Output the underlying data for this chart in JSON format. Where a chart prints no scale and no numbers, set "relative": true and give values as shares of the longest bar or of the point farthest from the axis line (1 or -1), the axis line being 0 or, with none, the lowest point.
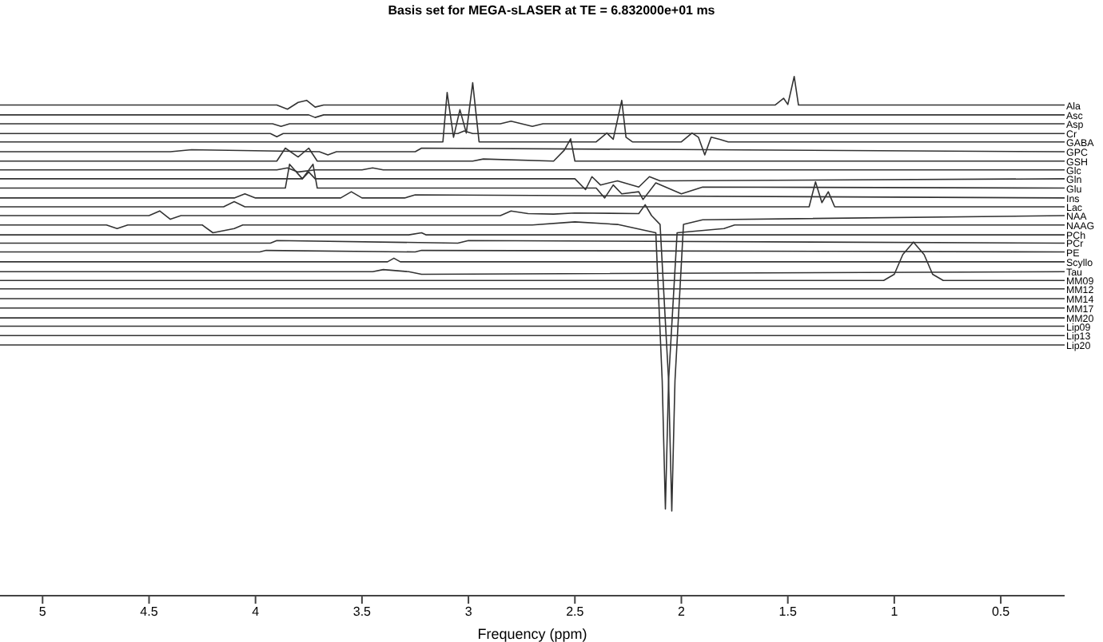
{
  "chart_data": {
    "type": "line",
    "title": "Basis set for MEGA-sLASER at TE = 6.832000e+01 ms",
    "xlabel": "Frequency (ppm)",
    "relative": true,
    "xlim": [
      5.2,
      0.2
    ],
    "xticks": [
      5,
      4.5,
      4,
      3.5,
      3,
      2.5,
      2,
      1.5,
      1,
      0.5
    ],
    "grid": false,
    "legend": false,
    "marker": "none",
    "line_style": "solid",
    "tick_labels": "x",
    "series": [
      {
        "name": "Ala",
        "color": "#333333",
        "x": [
          5.2,
          3.9,
          3.85,
          3.8,
          3.76,
          3.72,
          3.68,
          1.56,
          1.52,
          1.5,
          1.47,
          1.45,
          0.2
        ],
        "values": [
          0.945,
          0.945,
          0.937,
          0.95,
          0.954,
          0.941,
          0.945,
          0.945,
          0.958,
          0.946,
          1.0,
          0.945,
          0.945
        ]
      },
      {
        "name": "Asc",
        "color": "#333333",
        "x": [
          5.2,
          3.75,
          3.72,
          3.68,
          0.2
        ],
        "values": [
          0.926,
          0.926,
          0.921,
          0.926,
          0.926
        ]
      },
      {
        "name": "Asp",
        "color": "#333333",
        "x": [
          5.2,
          3.92,
          3.88,
          3.84,
          2.85,
          2.8,
          2.7,
          2.65,
          0.2
        ],
        "values": [
          0.909,
          0.909,
          0.904,
          0.909,
          0.909,
          0.914,
          0.904,
          0.909,
          0.909
        ]
      },
      {
        "name": "Cr",
        "color": "#333333",
        "x": [
          5.2,
          3.93,
          3.9,
          3.87,
          3.05,
          3.02,
          2.98,
          0.2
        ],
        "values": [
          0.89,
          0.89,
          0.884,
          0.89,
          0.89,
          0.895,
          0.89,
          0.89
        ]
      },
      {
        "name": "GABA",
        "color": "#333333",
        "x": [
          5.2,
          3.2,
          3.12,
          3.1,
          3.07,
          3.04,
          3.01,
          2.98,
          2.95,
          2.4,
          2.35,
          2.32,
          2.28,
          2.26,
          2.23,
          2.0,
          1.95,
          1.92,
          1.89,
          1.86,
          1.82,
          1.78,
          0.2
        ],
        "values": [
          0.874,
          0.874,
          0.874,
          0.969,
          0.883,
          0.936,
          0.891,
          0.988,
          0.874,
          0.874,
          0.891,
          0.879,
          0.954,
          0.883,
          0.874,
          0.874,
          0.891,
          0.883,
          0.849,
          0.883,
          0.879,
          0.874,
          0.874
        ]
      },
      {
        "name": "GPC",
        "color": "#333333",
        "x": [
          5.2,
          4.4,
          4.3,
          3.7,
          3.66,
          3.62,
          3.25,
          3.22,
          0.2
        ],
        "values": [
          0.855,
          0.855,
          0.859,
          0.855,
          0.849,
          0.855,
          0.855,
          0.862,
          0.855
        ]
      },
      {
        "name": "GSH",
        "color": "#333333",
        "x": [
          5.2,
          3.9,
          3.86,
          3.8,
          3.75,
          3.71,
          2.98,
          2.93,
          2.6,
          2.55,
          2.52,
          2.5,
          0.2
        ],
        "values": [
          0.837,
          0.837,
          0.862,
          0.845,
          0.862,
          0.837,
          0.837,
          0.841,
          0.837,
          0.858,
          0.88,
          0.837,
          0.837
        ]
      },
      {
        "name": "Glc",
        "color": "#333333",
        "x": [
          5.2,
          3.9,
          3.85,
          3.8,
          3.72,
          3.5,
          3.45,
          3.4,
          0.2
        ],
        "values": [
          0.82,
          0.82,
          0.824,
          0.816,
          0.82,
          0.82,
          0.824,
          0.82,
          0.82
        ]
      },
      {
        "name": "Gln",
        "color": "#333333",
        "x": [
          5.2,
          3.78,
          3.75,
          3.72,
          2.5,
          2.45,
          2.42,
          2.38,
          2.3,
          2.2,
          2.15,
          2.1,
          0.2
        ],
        "values": [
          0.803,
          0.803,
          0.816,
          0.803,
          0.803,
          0.782,
          0.807,
          0.791,
          0.799,
          0.787,
          0.807,
          0.799,
          0.803
        ]
      },
      {
        "name": "Glu",
        "color": "#333333",
        "x": [
          5.2,
          3.86,
          3.84,
          3.78,
          3.73,
          3.71,
          2.4,
          2.36,
          2.32,
          2.28,
          2.2,
          2.18,
          2.12,
          2.0,
          1.9,
          0.2
        ],
        "values": [
          0.785,
          0.785,
          0.831,
          0.803,
          0.831,
          0.785,
          0.785,
          0.766,
          0.791,
          0.774,
          0.778,
          0.763,
          0.795,
          0.774,
          0.787,
          0.785
        ]
      },
      {
        "name": "Ins",
        "color": "#333333",
        "x": [
          5.2,
          4.1,
          4.05,
          4.0,
          3.6,
          3.55,
          3.5,
          3.3,
          3.25,
          0.2
        ],
        "values": [
          0.766,
          0.766,
          0.774,
          0.766,
          0.766,
          0.778,
          0.766,
          0.766,
          0.772,
          0.766
        ]
      },
      {
        "name": "Lac",
        "color": "#333333",
        "x": [
          5.2,
          4.15,
          4.1,
          4.05,
          1.4,
          1.37,
          1.34,
          1.31,
          1.28,
          0.2
        ],
        "values": [
          0.749,
          0.749,
          0.759,
          0.749,
          0.749,
          0.797,
          0.757,
          0.778,
          0.749,
          0.749
        ]
      },
      {
        "name": "NAA",
        "color": "#333333",
        "x": [
          5.2,
          4.5,
          4.45,
          4.4,
          4.35,
          2.85,
          2.8,
          2.72,
          2.6,
          2.5,
          2.2,
          2.17,
          2.14,
          2.1,
          2.06,
          2.045,
          2.03,
          1.99,
          1.9,
          0.2
        ],
        "values": [
          0.732,
          0.732,
          0.741,
          0.725,
          0.732,
          0.732,
          0.741,
          0.736,
          0.735,
          0.737,
          0.736,
          0.753,
          0.732,
          0.715,
          0.414,
          0.163,
          0.414,
          0.715,
          0.724,
          0.732
        ]
      },
      {
        "name": "NAAG",
        "color": "#333333",
        "x": [
          5.2,
          4.7,
          4.65,
          4.6,
          4.25,
          4.2,
          4.1,
          4.06,
          2.7,
          2.5,
          2.3,
          2.12,
          2.09,
          2.075,
          2.06,
          2.02,
          1.8,
          1.75,
          0.2
        ],
        "values": [
          0.714,
          0.714,
          0.707,
          0.714,
          0.714,
          0.699,
          0.707,
          0.714,
          0.714,
          0.72,
          0.715,
          0.699,
          0.414,
          0.167,
          0.414,
          0.699,
          0.707,
          0.714,
          0.714
        ]
      },
      {
        "name": "PCh",
        "color": "#333333",
        "x": [
          5.2,
          3.28,
          3.22,
          3.2,
          0.2
        ],
        "values": [
          0.695,
          0.695,
          0.699,
          0.695,
          0.695
        ]
      },
      {
        "name": "PCr",
        "color": "#333333",
        "x": [
          5.2,
          3.93,
          3.9,
          3.05,
          3.0,
          0.2
        ],
        "values": [
          0.679,
          0.679,
          0.684,
          0.679,
          0.684,
          0.679
        ]
      },
      {
        "name": "PE",
        "color": "#333333",
        "x": [
          5.2,
          3.98,
          3.95,
          3.25,
          3.22,
          0.2
        ],
        "values": [
          0.662,
          0.662,
          0.665,
          0.662,
          0.665,
          0.662
        ]
      },
      {
        "name": "Scyllo",
        "color": "#333333",
        "x": [
          5.2,
          3.38,
          3.35,
          3.32,
          0.2
        ],
        "values": [
          0.643,
          0.643,
          0.65,
          0.643,
          0.643
        ]
      },
      {
        "name": "Tau",
        "color": "#333333",
        "x": [
          5.2,
          3.45,
          3.4,
          3.28,
          3.22,
          0.2
        ],
        "values": [
          0.624,
          0.624,
          0.628,
          0.624,
          0.619,
          0.624
        ]
      },
      {
        "name": "MM09",
        "color": "#333333",
        "x": [
          5.2,
          1.05,
          1.0,
          0.96,
          0.91,
          0.86,
          0.82,
          0.77,
          0.2
        ],
        "values": [
          0.607,
          0.607,
          0.619,
          0.657,
          0.681,
          0.657,
          0.619,
          0.607,
          0.607
        ]
      },
      {
        "name": "MM12",
        "color": "#333333",
        "x": [
          5.2,
          0.2
        ],
        "values": [
          0.591,
          0.591
        ]
      },
      {
        "name": "MM14",
        "color": "#333333",
        "x": [
          5.2,
          0.2
        ],
        "values": [
          0.572,
          0.572
        ]
      },
      {
        "name": "MM17",
        "color": "#333333",
        "x": [
          5.2,
          0.2
        ],
        "values": [
          0.554,
          0.554
        ]
      },
      {
        "name": "MM20",
        "color": "#333333",
        "x": [
          5.2,
          0.2
        ],
        "values": [
          0.535,
          0.535
        ]
      },
      {
        "name": "Lip09",
        "color": "#333333",
        "x": [
          5.2,
          0.2
        ],
        "values": [
          0.519,
          0.519
        ]
      },
      {
        "name": "Lip13",
        "color": "#333333",
        "x": [
          5.2,
          0.2
        ],
        "values": [
          0.501,
          0.501
        ]
      },
      {
        "name": "Lip20",
        "color": "#333333",
        "x": [
          5.2,
          0.2
        ],
        "values": [
          0.483,
          0.483
        ]
      }
    ]
  }
}
